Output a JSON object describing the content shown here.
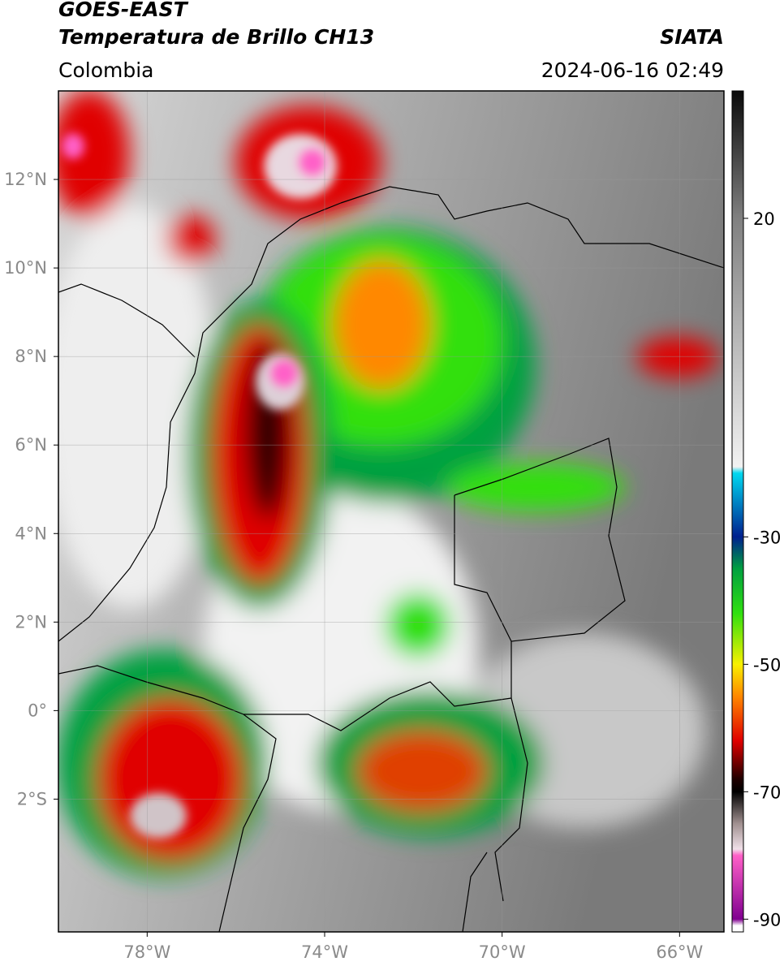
{
  "header": {
    "title": "GOES-EAST",
    "subtitle": "Temperatura de Brillo CH13",
    "source": "SIATA",
    "region": "Colombia",
    "timestamp": "2024-06-16 02:49"
  },
  "map": {
    "lonlim": [
      -80,
      -65
    ],
    "latlim": [
      -5,
      14
    ],
    "lonticks": [
      {
        "value": -78,
        "label": "78°W"
      },
      {
        "value": -74,
        "label": "74°W"
      },
      {
        "value": -70,
        "label": "70°W"
      },
      {
        "value": -66,
        "label": "66°W"
      }
    ],
    "latticks": [
      {
        "value": 12,
        "label": "12°N"
      },
      {
        "value": 10,
        "label": "10°N"
      },
      {
        "value": 8,
        "label": "8°N"
      },
      {
        "value": 6,
        "label": "6°N"
      },
      {
        "value": 4,
        "label": "4°N"
      },
      {
        "value": 2,
        "label": "2°N"
      },
      {
        "value": 0,
        "label": "0°"
      },
      {
        "value": -2,
        "label": "2°S"
      }
    ],
    "grid": true
  },
  "colorbar": {
    "lim": [
      -92,
      40
    ],
    "ticks": [
      20,
      -30,
      -50,
      -70,
      -90
    ],
    "stops": [
      [
        40,
        "#0a0a0a"
      ],
      [
        20,
        "#808080"
      ],
      [
        -19,
        "#f2f2f2"
      ],
      [
        -20,
        "#00d8f0"
      ],
      [
        -30,
        "#00208f"
      ],
      [
        -35,
        "#00a040"
      ],
      [
        -42,
        "#30e010"
      ],
      [
        -50,
        "#f8f000"
      ],
      [
        -55,
        "#ff8800"
      ],
      [
        -62,
        "#e00000"
      ],
      [
        -68,
        "#200000"
      ],
      [
        -70,
        "#000000"
      ],
      [
        -75,
        "#a09090"
      ],
      [
        -79,
        "#f0e0e8"
      ],
      [
        -80,
        "#ff60c8"
      ],
      [
        -90,
        "#800090"
      ],
      [
        -91,
        "#ffffff"
      ],
      [
        -92,
        "#ffffff"
      ]
    ]
  }
}
